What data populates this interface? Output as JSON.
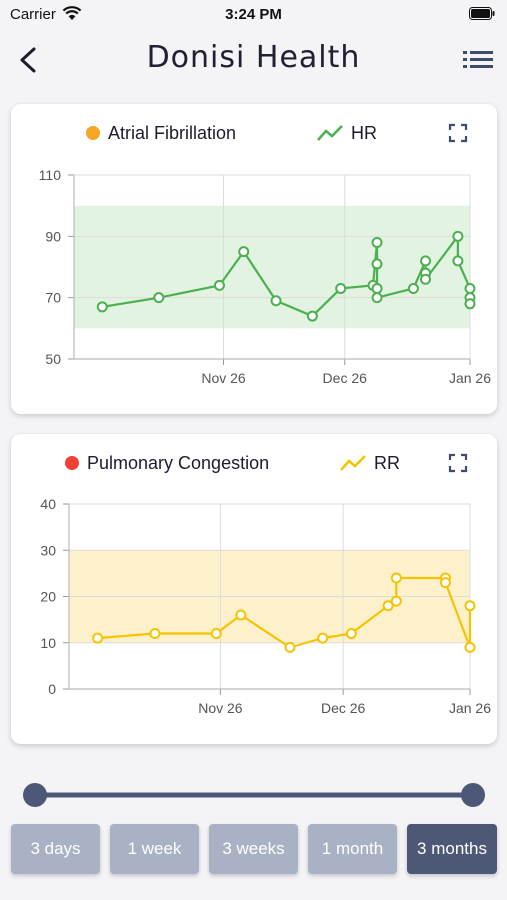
{
  "status_bar": {
    "carrier": "Carrier",
    "time": "3:24 PM"
  },
  "header": {
    "title": "Donisi Health"
  },
  "chart_data": [
    {
      "type": "line",
      "indicator_label": "Atrial Fibrillation",
      "indicator_color": "#f5a623",
      "series_name": "HR",
      "color": "#4caf50",
      "band_color": "#e3f3e1",
      "ylim": [
        50,
        110
      ],
      "yticks": [
        50,
        70,
        90,
        110
      ],
      "band": [
        60,
        100
      ],
      "xticks": [
        "Nov 26",
        "Dec 26",
        "Jan 26"
      ],
      "x": [
        "Oct 27",
        "Nov 10",
        "Nov 25",
        "Dec 1",
        "Dec 9",
        "Dec 18",
        "Dec 25",
        "Jan 2",
        "Jan 3",
        "Jan 3",
        "Jan 3",
        "Jan 3",
        "Jan 12",
        "Jan 15",
        "Jan 15",
        "Jan 15",
        "Jan 23",
        "Jan 23",
        "Jan 26",
        "Jan 26",
        "Jan 26"
      ],
      "values": [
        67,
        70,
        74,
        85,
        69,
        64,
        73,
        74,
        88,
        81,
        73,
        70,
        73,
        82,
        78,
        76,
        90,
        82,
        73,
        70,
        68
      ]
    },
    {
      "type": "line",
      "indicator_label": "Pulmonary Congestion",
      "indicator_color": "#ef4136",
      "series_name": "RR",
      "color": "#f5c400",
      "band_color": "#fdf1cc",
      "ylim": [
        0,
        40
      ],
      "yticks": [
        0,
        10,
        20,
        30,
        40
      ],
      "band": [
        10,
        30
      ],
      "xticks": [
        "Nov 26",
        "Dec 26",
        "Jan 26"
      ],
      "x": [
        "Oct 27",
        "Nov 10",
        "Nov 25",
        "Dec 1",
        "Dec 13",
        "Dec 21",
        "Dec 28",
        "Jan 6",
        "Jan 8",
        "Jan 8",
        "Jan 20",
        "Jan 20",
        "Jan 26",
        "Jan 26"
      ],
      "values": [
        11,
        12,
        12,
        16,
        9,
        11,
        12,
        18,
        19,
        24,
        24,
        23,
        9,
        18
      ]
    }
  ],
  "range_tabs": [
    {
      "label": "3 days",
      "active": false
    },
    {
      "label": "1 week",
      "active": false
    },
    {
      "label": "3 weeks",
      "active": false
    },
    {
      "label": "1 month",
      "active": false
    },
    {
      "label": "3 months",
      "active": true
    }
  ],
  "colors": {
    "slider": "#4c5875",
    "tab_inactive": "#a9b2c4",
    "tab_active": "#4c5875"
  },
  "icons": {
    "back": "chevron-left-icon",
    "menu": "list-icon",
    "expand": "expand-icon",
    "series": "trend-line-icon"
  }
}
